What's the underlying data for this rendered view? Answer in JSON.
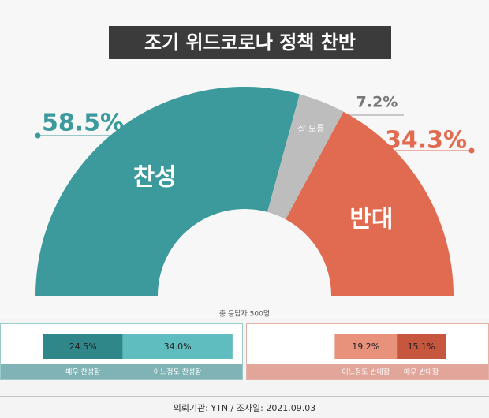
{
  "chart_data": [
    {
      "type": "pie",
      "title": "조기 위드코로나 정책 찬반",
      "categories": [
        "찬성",
        "잘 모름",
        "반대"
      ],
      "values": [
        58.5,
        7.2,
        34.3
      ],
      "value_labels": [
        "58.5%",
        "7.2%",
        "34.3%"
      ],
      "colors": [
        "#3c9a9c",
        "#bdbdbd",
        "#e06b50"
      ],
      "note": "총 응답자 500명"
    },
    {
      "type": "bar",
      "orientation": "horizontal",
      "stacked": true,
      "series": [
        {
          "name": "매우 찬성함",
          "color": "#2f8789",
          "values": [
            24.5
          ],
          "value_labels": [
            "24.5%"
          ]
        },
        {
          "name": "어느정도 찬성함",
          "color": "#5fbcbf",
          "values": [
            34.0
          ],
          "value_labels": [
            "34.0%"
          ]
        }
      ]
    },
    {
      "type": "bar",
      "orientation": "horizontal",
      "stacked": true,
      "series": [
        {
          "name": "어느정도 반대함",
          "color": "#e8927c",
          "values": [
            19.2
          ],
          "value_labels": [
            "19.2%"
          ]
        },
        {
          "name": "매우 반대함",
          "color": "#c7563e",
          "values": [
            15.1
          ],
          "value_labels": [
            "15.1%"
          ]
        }
      ]
    }
  ],
  "footer": "의뢰기관: YTN / 조사일: 2021.09.03"
}
